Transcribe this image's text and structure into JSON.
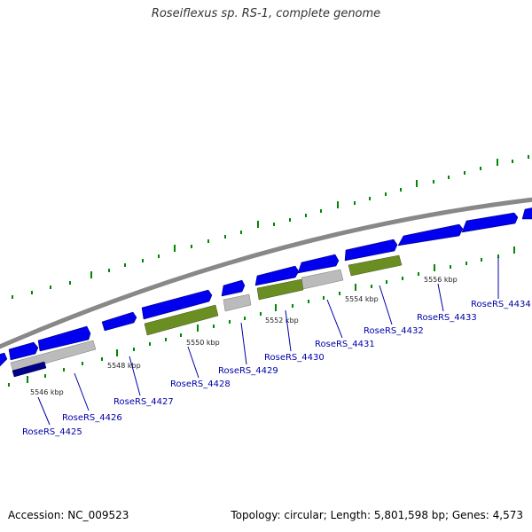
{
  "title": "Roseiflexus sp. RS-1, complete genome",
  "footer": {
    "accession": "Accession: NC_009523",
    "info": "Topology: circular; Length: 5,801,598 bp; Genes: 4,573"
  },
  "colors": {
    "backbone": "#888888",
    "cds": "#0000ee",
    "cds_dark": "#000088",
    "rna_green": "#6b8e23",
    "pseudo_grey": "#bbbbbb",
    "tick": "#008800",
    "label": "#0000aa"
  },
  "kbp_labels": [
    "5546 kbp",
    "5548 kbp",
    "5550 kbp",
    "5552 kbp",
    "5554 kbp",
    "5556 kbp"
  ],
  "gene_labels": [
    "RoseRS_4425",
    "RoseRS_4426",
    "RoseRS_4427",
    "RoseRS_4428",
    "RoseRS_4429",
    "RoseRS_4430",
    "RoseRS_4431",
    "RoseRS_4432",
    "RoseRS_4433",
    "RoseRS_4434"
  ]
}
